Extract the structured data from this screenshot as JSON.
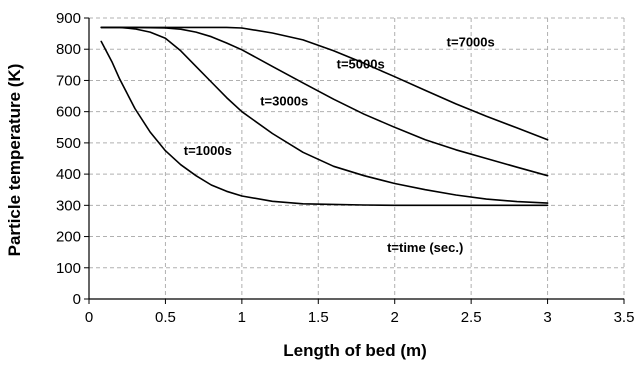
{
  "chart_data": {
    "type": "line",
    "title": "",
    "xlabel": "Length of bed (m)",
    "ylabel": "Particle temperature (K)",
    "xlim": [
      0,
      3.5
    ],
    "ylim": [
      0,
      900
    ],
    "xticks": [
      0,
      0.5,
      1,
      1.5,
      2,
      2.5,
      3,
      3.5
    ],
    "xtick_labels": [
      "0",
      "0.5",
      "1",
      "1.5",
      "2",
      "2.5",
      "3",
      "3.5"
    ],
    "yticks": [
      0,
      100,
      200,
      300,
      400,
      500,
      600,
      700,
      800,
      900
    ],
    "ytick_labels": [
      "0",
      "100",
      "200",
      "300",
      "400",
      "500",
      "600",
      "700",
      "800",
      "900"
    ],
    "grid": true,
    "line_color": "#000000",
    "grid_color": "#b0b0b0",
    "annotation": "t=time (sec.)",
    "series": [
      {
        "name": "t=1000s",
        "x": [
          0.08,
          0.15,
          0.2,
          0.3,
          0.4,
          0.5,
          0.6,
          0.7,
          0.8,
          0.9,
          1.0,
          1.2,
          1.4,
          1.6,
          1.8,
          2.0,
          2.5,
          3.0
        ],
        "y": [
          825,
          760,
          705,
          610,
          535,
          475,
          430,
          395,
          365,
          345,
          330,
          313,
          305,
          303,
          301,
          300,
          300,
          300
        ]
      },
      {
        "name": "t=3000s",
        "x": [
          0.08,
          0.2,
          0.3,
          0.4,
          0.5,
          0.6,
          0.7,
          0.8,
          0.9,
          1.0,
          1.2,
          1.4,
          1.6,
          1.8,
          2.0,
          2.2,
          2.4,
          2.6,
          2.8,
          3.0
        ],
        "y": [
          870,
          870,
          865,
          855,
          835,
          795,
          745,
          695,
          645,
          600,
          530,
          470,
          425,
          395,
          370,
          350,
          333,
          320,
          312,
          307
        ]
      },
      {
        "name": "t=5000s",
        "x": [
          0.08,
          0.3,
          0.5,
          0.6,
          0.7,
          0.8,
          0.9,
          1.0,
          1.2,
          1.4,
          1.6,
          1.8,
          2.0,
          2.2,
          2.4,
          2.6,
          2.8,
          3.0
        ],
        "y": [
          870,
          870,
          868,
          864,
          855,
          840,
          820,
          798,
          745,
          692,
          640,
          592,
          550,
          510,
          478,
          450,
          422,
          395
        ]
      },
      {
        "name": "t=7000s",
        "x": [
          0.08,
          0.5,
          0.9,
          1.0,
          1.2,
          1.4,
          1.6,
          1.8,
          2.0,
          2.2,
          2.4,
          2.6,
          2.8,
          3.0
        ],
        "y": [
          870,
          870,
          870,
          868,
          852,
          830,
          795,
          755,
          712,
          668,
          625,
          585,
          548,
          510
        ]
      }
    ],
    "series_label_positions": [
      {
        "name": "t=1000s",
        "x": 0.62,
        "y": 462
      },
      {
        "name": "t=3000s",
        "x": 1.12,
        "y": 620
      },
      {
        "name": "t=5000s",
        "x": 1.62,
        "y": 738
      },
      {
        "name": "t=7000s",
        "x": 2.34,
        "y": 808
      }
    ],
    "annotation_position": {
      "x": 1.95,
      "y": 150
    }
  }
}
